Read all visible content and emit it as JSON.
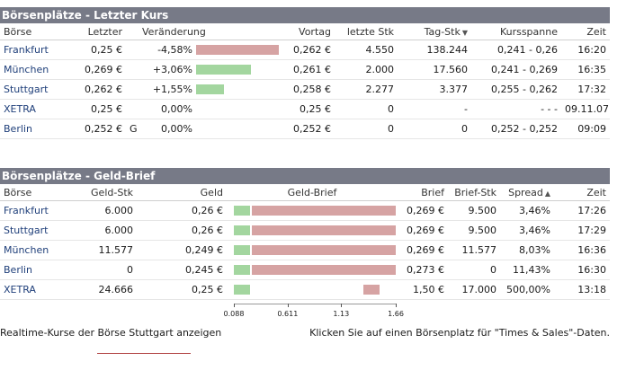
{
  "section1": {
    "title": "Börsenplätze - Letzter Kurs",
    "headers": [
      "Börse",
      "Letzter",
      "Veränderung",
      "Vortag",
      "letzte Stk",
      "Tag-Stk",
      "Kursspanne",
      "Zeit"
    ],
    "sorted_column": "Tag-Stk",
    "rows": [
      {
        "exchange": "Frankfurt",
        "last": "0,25 €",
        "flag": "",
        "change": "-4,58%",
        "change_value": -4.58,
        "prev": "0,262 €",
        "last_qty": "4.550",
        "day_qty": "138.244",
        "range": "0,241 - 0,26",
        "time": "16:20"
      },
      {
        "exchange": "München",
        "last": "0,269 €",
        "flag": "",
        "change": "+3,06%",
        "change_value": 3.06,
        "prev": "0,261 €",
        "last_qty": "2.000",
        "day_qty": "17.560",
        "range": "0,241 - 0,269",
        "time": "16:35"
      },
      {
        "exchange": "Stuttgart",
        "last": "0,262 €",
        "flag": "",
        "change": "+1,55%",
        "change_value": 1.55,
        "prev": "0,258 €",
        "last_qty": "2.277",
        "day_qty": "3.377",
        "range": "0,255 - 0,262",
        "time": "17:32"
      },
      {
        "exchange": "XETRA",
        "last": "0,25 €",
        "flag": "",
        "change": "0,00%",
        "change_value": 0,
        "prev": "0,25 €",
        "last_qty": "0",
        "day_qty": "-",
        "range": "- - -",
        "time": "09.11.07"
      },
      {
        "exchange": "Berlin",
        "last": "0,252 €",
        "flag": "G",
        "change": "0,00%",
        "change_value": 0,
        "prev": "0,252 €",
        "last_qty": "0",
        "day_qty": "0",
        "range": "0,252 - 0,252",
        "time": "09:09"
      }
    ]
  },
  "section2": {
    "title": "Börsenplätze - Geld-Brief",
    "headers": [
      "Börse",
      "Geld-Stk",
      "Geld",
      "Geld-Brief",
      "Brief",
      "Brief-Stk",
      "Spread",
      "Zeit"
    ],
    "sorted_column": "Spread",
    "rows": [
      {
        "exchange": "Frankfurt",
        "bid_qty": "6.000",
        "bid": "0,26 €",
        "bid_value": 0.26,
        "ask": "0,269 €",
        "ask_value": 0.269,
        "ask_qty": "9.500",
        "spread": "3,46%",
        "time": "17:26"
      },
      {
        "exchange": "Stuttgart",
        "bid_qty": "6.000",
        "bid": "0,26 €",
        "bid_value": 0.26,
        "ask": "0,269 €",
        "ask_value": 0.269,
        "ask_qty": "9.500",
        "spread": "3,46%",
        "time": "17:29"
      },
      {
        "exchange": "München",
        "bid_qty": "11.577",
        "bid": "0,249 €",
        "bid_value": 0.249,
        "ask": "0,269 €",
        "ask_value": 0.269,
        "ask_qty": "11.577",
        "spread": "8,03%",
        "time": "16:36"
      },
      {
        "exchange": "Berlin",
        "bid_qty": "0",
        "bid": "0,245 €",
        "bid_value": 0.245,
        "ask": "0,273 €",
        "ask_value": 0.273,
        "ask_qty": "0",
        "spread": "11,43%",
        "time": "16:30"
      },
      {
        "exchange": "XETRA",
        "bid_qty": "24.666",
        "bid": "0,25 €",
        "bid_value": 0.25,
        "ask": "1,50 €",
        "ask_value": 1.5,
        "ask_qty": "17.000",
        "spread": "500,00%",
        "time": "13:18"
      }
    ],
    "scale_ticks": [
      "0.088",
      "0.611",
      "1.13",
      "1.66"
    ]
  },
  "footer": {
    "left_link": "Realtime-Kurse der Börse Stuttgart anzeigen",
    "right_text": "Klicken Sie auf einen Börsenplatz für \"Times & Sales\"-Daten."
  },
  "colors": {
    "header_bg": "#777a87",
    "bar_red": "#d6a3a3",
    "bar_green": "#a3d69f"
  }
}
